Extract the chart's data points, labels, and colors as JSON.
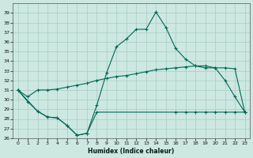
{
  "xlabel": "Humidex (Indice chaleur)",
  "bg_color": "#cce8e0",
  "grid_color": "#a8ccc4",
  "line_color": "#006858",
  "xlim": [
    -0.5,
    23.5
  ],
  "ylim": [
    26,
    40
  ],
  "yticks": [
    26,
    27,
    28,
    29,
    30,
    31,
    32,
    33,
    34,
    35,
    36,
    37,
    38,
    39
  ],
  "xticks": [
    0,
    1,
    2,
    3,
    4,
    5,
    6,
    7,
    8,
    9,
    10,
    11,
    12,
    13,
    14,
    15,
    16,
    17,
    18,
    19,
    20,
    21,
    22,
    23
  ],
  "series1_x": [
    0,
    1,
    2,
    3,
    4,
    5,
    6,
    7,
    8,
    9,
    10,
    11,
    12,
    13,
    14,
    15,
    16,
    17,
    18,
    19,
    20,
    21,
    22,
    23
  ],
  "series1_y": [
    31.0,
    30.3,
    31.0,
    31.0,
    31.1,
    31.3,
    31.5,
    31.7,
    32.0,
    32.2,
    32.4,
    32.5,
    32.7,
    32.9,
    33.1,
    33.2,
    33.3,
    33.4,
    33.5,
    33.5,
    33.3,
    33.3,
    33.2,
    28.7
  ],
  "series2_x": [
    0,
    1,
    2,
    3,
    4,
    5,
    6,
    7,
    8,
    9,
    10,
    11,
    12,
    13,
    14,
    15,
    16,
    17,
    18,
    19,
    20,
    21,
    22,
    23
  ],
  "series2_y": [
    31.0,
    29.8,
    28.8,
    28.2,
    28.1,
    27.3,
    26.3,
    26.5,
    29.4,
    32.8,
    35.5,
    36.3,
    37.3,
    37.3,
    39.1,
    37.5,
    35.3,
    34.2,
    33.5,
    33.3,
    33.3,
    32.0,
    30.3,
    28.7
  ],
  "series3_x": [
    0,
    2,
    3,
    4,
    5,
    6,
    7,
    8,
    16,
    17,
    18,
    19,
    20,
    21,
    22,
    23
  ],
  "series3_y": [
    31.0,
    28.8,
    28.2,
    28.1,
    27.3,
    26.3,
    26.5,
    28.7,
    28.7,
    28.7,
    28.7,
    28.7,
    28.7,
    28.7,
    28.7,
    28.7
  ]
}
